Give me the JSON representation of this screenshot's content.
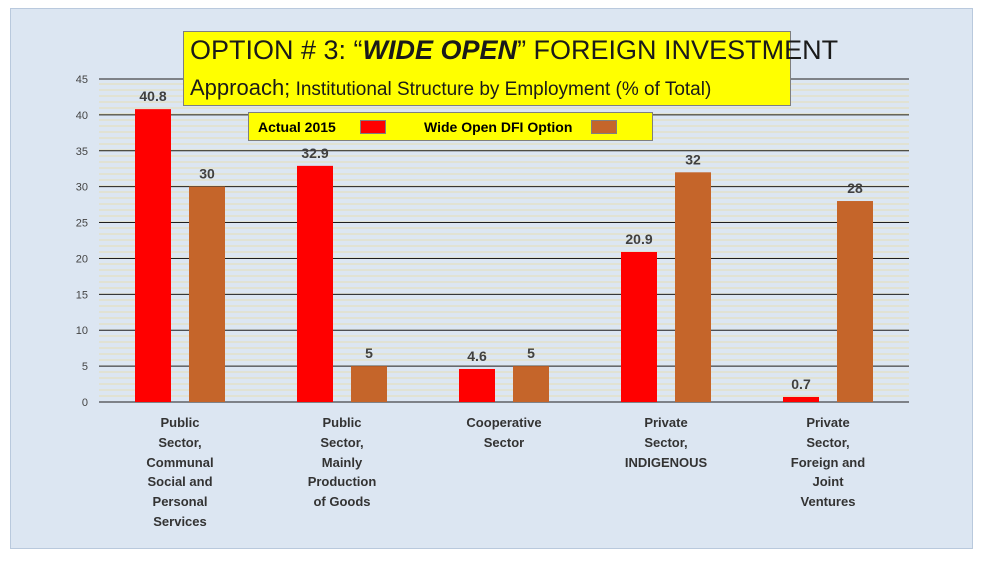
{
  "title": {
    "line1_prefix": "OPTION # 3: “",
    "line1_emph": "WIDE OPEN",
    "line1_suffix": "”  FOREIGN INVESTMENT",
    "line2_main": "Approach;",
    "line2_sub": " Institutional Structure by Employment (% of Total)"
  },
  "legend": {
    "series1": "Actual 2015",
    "series2": "Wide Open DFI Option"
  },
  "colors": {
    "series1": "#ff0000",
    "series2": "#c5652a",
    "legend_bg": "#ffff00",
    "background": "#dce6f2"
  },
  "chart_data": {
    "type": "bar",
    "categories": [
      [
        "Public",
        "Sector,",
        "Communal",
        "Social and",
        "Personal",
        "Services"
      ],
      [
        "Public",
        "Sector,",
        "Mainly",
        "Production",
        "of Goods"
      ],
      [
        "Cooperative",
        "Sector"
      ],
      [
        "Private",
        "Sector,",
        "INDIGENOUS"
      ],
      [
        "Private",
        "Sector,",
        "Foreign and",
        "Joint",
        "Ventures"
      ]
    ],
    "series": [
      {
        "name": "Actual 2015",
        "values": [
          40.8,
          32.9,
          4.6,
          20.9,
          0.7
        ],
        "labels": [
          "40.8",
          "32.9",
          "4.6",
          "20.9",
          "0.7"
        ]
      },
      {
        "name": "Wide Open DFI Option",
        "values": [
          30,
          5,
          5,
          32,
          28
        ],
        "labels": [
          "30",
          "5",
          "5",
          "32",
          "28"
        ]
      }
    ],
    "ylim": [
      0,
      45
    ],
    "yticks": [
      "0",
      "5",
      "10",
      "15",
      "20",
      "25",
      "30",
      "35",
      "40",
      "45"
    ],
    "grid": true,
    "legend_position": "top-center"
  }
}
